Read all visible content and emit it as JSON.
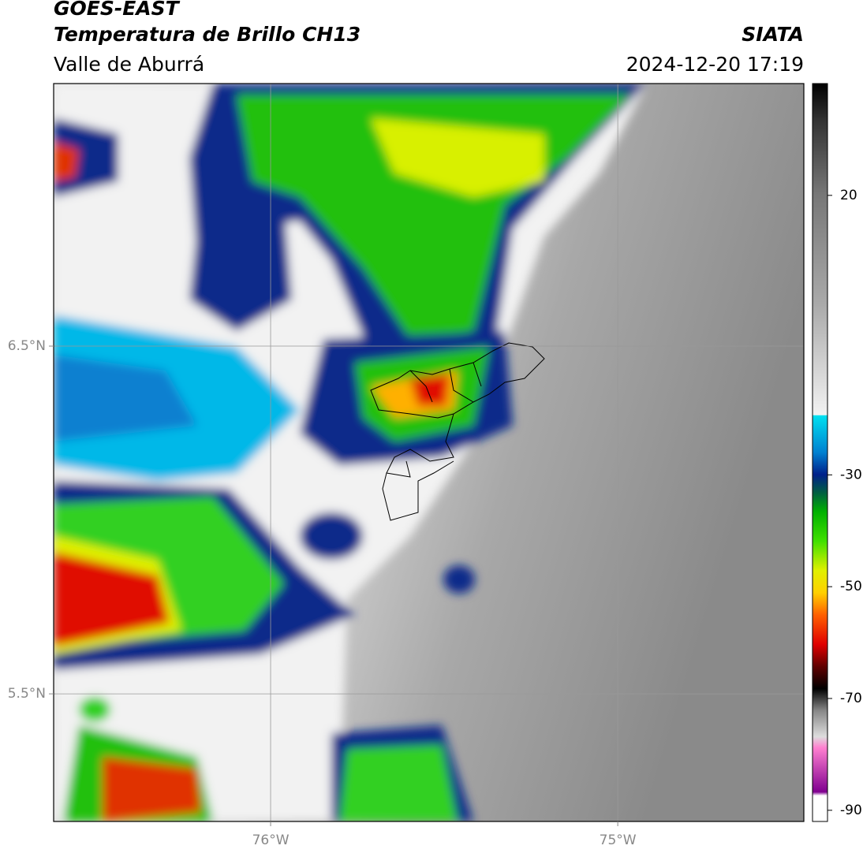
{
  "header": {
    "title": "GOES-EAST",
    "subtitle": "Temperatura de Brillo CH13",
    "region": "Valle de Aburrá",
    "source": "SIATA",
    "datetime": "2024-12-20 17:19"
  },
  "map": {
    "xlim": [
      -76.625,
      -74.464
    ],
    "ylim": [
      5.133,
      7.255
    ],
    "xticks": [
      {
        "value": -76,
        "label": "76°W"
      },
      {
        "value": -75,
        "label": "75°W"
      }
    ],
    "yticks": [
      {
        "value": 6.5,
        "label": "6.5°N"
      },
      {
        "value": 5.5,
        "label": "5.5°N"
      }
    ],
    "grid": true
  },
  "colorbar": {
    "lim": [
      -92,
      40
    ],
    "ticks": [
      20,
      -30,
      -50,
      -70,
      -90
    ]
  }
}
